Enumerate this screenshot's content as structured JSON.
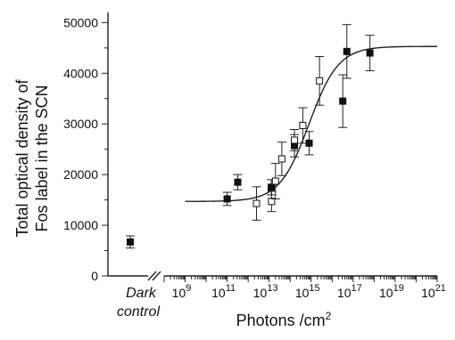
{
  "chart_data": {
    "type": "scatter",
    "title": "",
    "ylabel_line1": "Total optical density of",
    "ylabel_line2": "Fos label in the SCN",
    "xlabel_main": "Photons /cm",
    "xlabel_sup": "2",
    "x_scale": "log",
    "xlim": [
      100000000.0,
      1e+21
    ],
    "ylim": [
      0,
      52000
    ],
    "y_ticks": [
      0,
      10000,
      20000,
      30000,
      40000,
      50000
    ],
    "y_tick_labels": [
      "0",
      "10000",
      "20000",
      "30000",
      "40000",
      "50000"
    ],
    "x_ticks": [
      {
        "base": "10",
        "exp": "9",
        "value": 1000000000.0
      },
      {
        "base": "10",
        "exp": "11",
        "value": 100000000000.0
      },
      {
        "base": "10",
        "exp": "13",
        "value": 10000000000000.0
      },
      {
        "base": "10",
        "exp": "15",
        "value": 1000000000000000.0
      },
      {
        "base": "10",
        "exp": "17",
        "value": 1e+17
      },
      {
        "base": "10",
        "exp": "19",
        "value": 1e+19
      },
      {
        "base": "10",
        "exp": "21",
        "value": 1e+21
      }
    ],
    "control": {
      "label_line1": "Dark",
      "label_line2": "control",
      "y": 6700,
      "err": 1200
    },
    "series": [
      {
        "marker": "filled-square",
        "points": [
          {
            "x": 100000000000.0,
            "y": 15200,
            "err": 1300
          },
          {
            "x": 320000000000.0,
            "y": 18500,
            "err": 1500
          },
          {
            "x": 12600000000000.0,
            "y": 17500,
            "err": 1500
          },
          {
            "x": 160000000000000.0,
            "y": 25700,
            "err": 2200
          },
          {
            "x": 800000000000000.0,
            "y": 26200,
            "err": 2300
          },
          {
            "x": 3.2e+16,
            "y": 34500,
            "err": 5200
          },
          {
            "x": 5e+16,
            "y": 44300,
            "err": 5300
          },
          {
            "x": 6.3e+17,
            "y": 44000,
            "err": 3500
          }
        ]
      },
      {
        "marker": "open-square",
        "points": [
          {
            "x": 2500000000000.0,
            "y": 14300,
            "err": 3300
          },
          {
            "x": 13000000000000.0,
            "y": 14700,
            "err": 2000
          },
          {
            "x": 20000000000000.0,
            "y": 18700,
            "err": 3500
          },
          {
            "x": 40000000000000.0,
            "y": 23100,
            "err": 3300
          },
          {
            "x": 160000000000000.0,
            "y": 26800,
            "err": 2100
          },
          {
            "x": 400000000000000.0,
            "y": 29700,
            "err": 3500
          },
          {
            "x": 2500000000000000.0,
            "y": 38500,
            "err": 4800
          }
        ]
      }
    ],
    "fit_curve": {
      "bottom": 14700,
      "top": 45300,
      "log_ec50": 14.9,
      "hill": 0.62,
      "x_start": 1000000000.0,
      "x_end": 1e+21
    }
  }
}
